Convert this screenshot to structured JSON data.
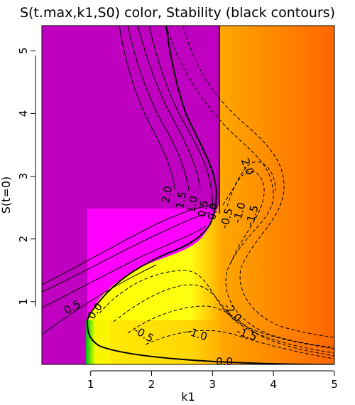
{
  "chart_data": {
    "type": "heatmap",
    "title": "S(t.max,k1,S0) color, Stability (black contours)",
    "xlabel": "k1",
    "ylabel": "S(t=0)",
    "xlim": [
      0.2,
      5.0
    ],
    "ylim": [
      0.0,
      5.4
    ],
    "xticks": [
      "1",
      "2",
      "3",
      "4",
      "5"
    ],
    "yticks": [
      "1",
      "2",
      "3",
      "4",
      "5"
    ],
    "colors": {
      "purple": "#c000c0",
      "magenta": "#ff00ff",
      "yellow": "#ffff00",
      "green": "#22cc00",
      "orange_left": "#ffa800",
      "orange_right": "#ff6800"
    },
    "color_regions": [
      {
        "name": "purple",
        "k1": [
          0.2,
          3.1
        ],
        "S0": [
          0.0,
          5.4
        ]
      },
      {
        "name": "magenta",
        "k1": [
          0.95,
          3.1
        ],
        "S0": [
          0.0,
          2.6
        ]
      },
      {
        "name": "orange",
        "k1": [
          3.1,
          5.0
        ],
        "S0": [
          0.0,
          5.4
        ]
      },
      {
        "name": "yellow-green",
        "k1": [
          0.95,
          3.1
        ],
        "S0": [
          0.0,
          0.8
        ]
      }
    ],
    "contour_labels": {
      "solid": [
        "2.0",
        "1.5",
        "1.0",
        "0.5",
        "0.0",
        "0.5",
        "0.0",
        "0.0"
      ],
      "dashed": [
        "-0.5",
        "-1.0",
        "-1.5",
        "2.0",
        "-0.5",
        "-1.0",
        "-1.5",
        "-2.0"
      ]
    }
  }
}
